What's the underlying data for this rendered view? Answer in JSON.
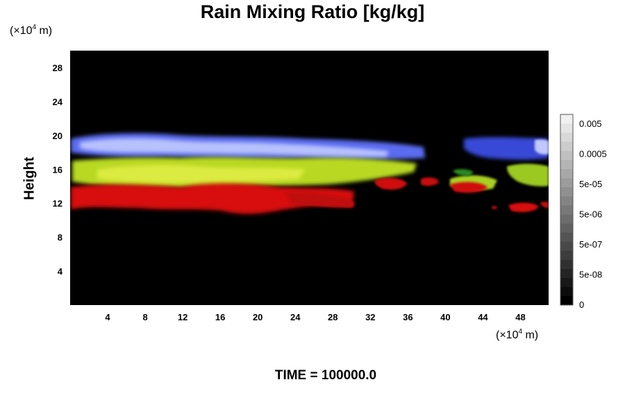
{
  "chart_data": {
    "type": "heatmap",
    "title": "Rain Mixing Ratio [kg/kg]",
    "ylabel": "Height",
    "x_unit": {
      "prefix": "(×10",
      "exponent": "4",
      "suffix": " m)"
    },
    "y_unit": {
      "prefix": "(×10",
      "exponent": "4",
      "suffix": " m)"
    },
    "xlim": [
      0,
      51
    ],
    "ylim": [
      0,
      30
    ],
    "x_ticks": [
      4,
      8,
      12,
      16,
      20,
      24,
      28,
      32,
      36,
      40,
      44,
      48
    ],
    "y_ticks": [
      4,
      8,
      12,
      16,
      20,
      24,
      28
    ],
    "colorbar": {
      "tick_labels": [
        "0",
        "5e-08",
        "5e-07",
        "5e-06",
        "5e-05",
        "0.0005",
        "0.005"
      ],
      "levels": 21,
      "low_color": "#000000",
      "high_color": "#f0f0f0"
    },
    "layers": [
      {
        "color": "#9aa6ff",
        "height_range": [
          17.0,
          20.0
        ]
      },
      {
        "color": "#c8e02a",
        "height_range": [
          13.5,
          17.0
        ]
      },
      {
        "color": "#e01010",
        "height_range": [
          10.5,
          14.0
        ]
      }
    ]
  },
  "footer": {
    "time_label": "TIME = 100000.0"
  }
}
